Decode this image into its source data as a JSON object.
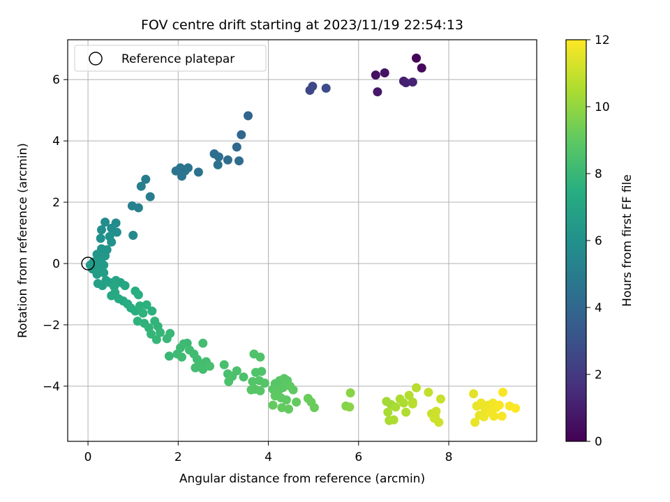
{
  "chart_data": {
    "type": "scatter",
    "title": "FOV centre drift starting at 2023/11/19 22:54:13",
    "xlabel": "Angular distance from reference (arcmin)",
    "ylabel": "Rotation from reference (arcmin)",
    "xlim": [
      -0.45,
      9.95
    ],
    "ylim": [
      -5.8,
      7.3
    ],
    "xticks": [
      0,
      2,
      4,
      6,
      8
    ],
    "yticks": [
      -4,
      -2,
      0,
      2,
      4,
      6
    ],
    "grid": true,
    "legend": {
      "position": "top-left",
      "entries": [
        "Reference platepar"
      ]
    },
    "reference_point": {
      "x": 0,
      "y": 0
    },
    "colorbar": {
      "label": "Hours from first FF file",
      "min": 0,
      "max": 12,
      "ticks": [
        0,
        2,
        4,
        6,
        8,
        10,
        12
      ],
      "colormap": "viridis"
    },
    "points": [
      [
        7.28,
        6.7,
        0.1
      ],
      [
        7.4,
        6.38,
        0.3
      ],
      [
        6.38,
        6.15,
        0.5
      ],
      [
        6.58,
        6.22,
        0.6
      ],
      [
        6.42,
        5.6,
        0.8
      ],
      [
        7.0,
        5.95,
        1.0
      ],
      [
        7.05,
        5.9,
        1.1
      ],
      [
        7.2,
        5.92,
        1.2
      ],
      [
        4.92,
        5.65,
        2.5
      ],
      [
        4.98,
        5.78,
        2.6
      ],
      [
        5.28,
        5.72,
        2.8
      ],
      [
        3.55,
        4.82,
        3.9
      ],
      [
        3.4,
        4.2,
        4.0
      ],
      [
        3.3,
        3.8,
        4.1
      ],
      [
        3.35,
        3.35,
        4.2
      ],
      [
        3.1,
        3.38,
        4.2
      ],
      [
        2.9,
        3.48,
        4.3
      ],
      [
        2.8,
        3.58,
        4.3
      ],
      [
        2.88,
        3.22,
        4.4
      ],
      [
        2.45,
        2.98,
        4.5
      ],
      [
        2.22,
        3.12,
        4.6
      ],
      [
        2.15,
        3.02,
        4.6
      ],
      [
        2.05,
        3.12,
        4.6
      ],
      [
        1.95,
        3.02,
        4.7
      ],
      [
        2.08,
        2.85,
        4.7
      ],
      [
        1.28,
        2.75,
        5.0
      ],
      [
        1.38,
        2.18,
        5.0
      ],
      [
        1.18,
        2.52,
        5.1
      ],
      [
        1.12,
        1.82,
        5.2
      ],
      [
        0.98,
        1.88,
        5.2
      ],
      [
        1.0,
        0.92,
        5.6
      ],
      [
        0.62,
        1.32,
        5.7
      ],
      [
        0.38,
        1.35,
        5.8
      ],
      [
        0.52,
        1.15,
        5.8
      ],
      [
        0.3,
        1.1,
        5.9
      ],
      [
        0.64,
        1.02,
        5.9
      ],
      [
        0.48,
        0.88,
        6.0
      ],
      [
        0.28,
        0.82,
        6.0
      ],
      [
        0.52,
        0.7,
        6.1
      ],
      [
        0.42,
        0.45,
        6.2
      ],
      [
        0.3,
        0.48,
        6.2
      ],
      [
        0.2,
        0.3,
        6.3
      ],
      [
        0.3,
        0.18,
        6.3
      ],
      [
        0.38,
        0.25,
        6.3
      ],
      [
        0.12,
        0.05,
        6.4
      ],
      [
        0.05,
        -0.05,
        6.4
      ],
      [
        0.25,
        0.05,
        6.4
      ],
      [
        0.35,
        -0.05,
        6.5
      ],
      [
        0.18,
        -0.12,
        6.5
      ],
      [
        0.1,
        -0.18,
        6.5
      ],
      [
        0.28,
        -0.22,
        6.6
      ],
      [
        0.2,
        -0.35,
        6.6
      ],
      [
        0.35,
        -0.3,
        6.6
      ],
      [
        0.4,
        -0.55,
        6.7
      ],
      [
        0.22,
        -0.65,
        6.8
      ],
      [
        0.32,
        -0.72,
        6.8
      ],
      [
        0.48,
        -0.62,
        6.9
      ],
      [
        0.62,
        -0.55,
        7.0
      ],
      [
        0.72,
        -0.62,
        7.0
      ],
      [
        0.82,
        -0.72,
        7.1
      ],
      [
        0.58,
        -0.75,
        7.1
      ],
      [
        0.6,
        -0.95,
        7.2
      ],
      [
        0.52,
        -1.05,
        7.2
      ],
      [
        0.68,
        -1.15,
        7.3
      ],
      [
        0.78,
        -1.22,
        7.3
      ],
      [
        0.88,
        -1.32,
        7.4
      ],
      [
        1.05,
        -0.9,
        7.4
      ],
      [
        1.12,
        -1.02,
        7.5
      ],
      [
        0.95,
        -1.45,
        7.5
      ],
      [
        1.05,
        -1.55,
        7.5
      ],
      [
        1.15,
        -1.38,
        7.6
      ],
      [
        1.3,
        -1.35,
        7.6
      ],
      [
        1.42,
        -1.55,
        7.6
      ],
      [
        1.22,
        -1.62,
        7.7
      ],
      [
        1.1,
        -1.88,
        7.7
      ],
      [
        1.25,
        -1.95,
        7.7
      ],
      [
        1.35,
        -2.1,
        7.8
      ],
      [
        1.48,
        -1.88,
        7.8
      ],
      [
        1.55,
        -2.05,
        7.8
      ],
      [
        1.4,
        -2.3,
        7.9
      ],
      [
        1.6,
        -2.25,
        7.9
      ],
      [
        1.52,
        -2.48,
        7.9
      ],
      [
        1.75,
        -2.45,
        8.0
      ],
      [
        1.82,
        -2.28,
        8.0
      ],
      [
        1.8,
        -3.02,
        8.0
      ],
      [
        1.98,
        -2.95,
        8.1
      ],
      [
        2.05,
        -2.75,
        8.1
      ],
      [
        2.12,
        -2.62,
        8.1
      ],
      [
        2.2,
        -2.6,
        8.1
      ],
      [
        2.25,
        -2.82,
        8.2
      ],
      [
        2.08,
        -3.05,
        8.2
      ],
      [
        2.35,
        -2.95,
        8.2
      ],
      [
        2.42,
        -3.12,
        8.2
      ],
      [
        2.55,
        -2.6,
        8.3
      ],
      [
        2.48,
        -3.25,
        8.3
      ],
      [
        2.38,
        -3.4,
        8.3
      ],
      [
        2.55,
        -3.45,
        8.3
      ],
      [
        2.62,
        -3.2,
        8.3
      ],
      [
        2.7,
        -3.35,
        8.4
      ],
      [
        3.02,
        -3.3,
        8.4
      ],
      [
        3.1,
        -3.6,
        8.4
      ],
      [
        3.2,
        -3.68,
        8.5
      ],
      [
        3.12,
        -3.85,
        8.5
      ],
      [
        3.3,
        -3.5,
        8.5
      ],
      [
        3.45,
        -3.7,
        8.5
      ],
      [
        3.68,
        -2.95,
        8.6
      ],
      [
        3.82,
        -3.05,
        8.6
      ],
      [
        3.72,
        -3.55,
        8.6
      ],
      [
        3.85,
        -3.52,
        8.6
      ],
      [
        3.65,
        -3.85,
        8.7
      ],
      [
        3.8,
        -3.82,
        8.7
      ],
      [
        3.92,
        -3.9,
        8.7
      ],
      [
        3.7,
        -4.1,
        8.7
      ],
      [
        3.82,
        -4.15,
        8.8
      ],
      [
        3.62,
        -4.12,
        8.8
      ],
      [
        4.15,
        -3.92,
        8.8
      ],
      [
        4.25,
        -3.82,
        8.8
      ],
      [
        4.35,
        -3.75,
        8.9
      ],
      [
        4.42,
        -3.82,
        8.9
      ],
      [
        4.1,
        -4.1,
        8.9
      ],
      [
        4.22,
        -4.15,
        8.9
      ],
      [
        4.32,
        -4.05,
        8.9
      ],
      [
        4.48,
        -4.0,
        9.0
      ],
      [
        4.55,
        -4.12,
        9.0
      ],
      [
        4.15,
        -4.32,
        9.0
      ],
      [
        4.28,
        -4.38,
        9.0
      ],
      [
        4.4,
        -4.45,
        9.0
      ],
      [
        4.62,
        -4.52,
        9.1
      ],
      [
        4.1,
        -4.62,
        9.1
      ],
      [
        4.3,
        -4.7,
        9.1
      ],
      [
        4.45,
        -4.75,
        9.1
      ],
      [
        4.88,
        -4.4,
        9.2
      ],
      [
        4.95,
        -4.52,
        9.2
      ],
      [
        5.02,
        -4.7,
        9.2
      ],
      [
        5.72,
        -4.65,
        9.7
      ],
      [
        5.8,
        -4.68,
        9.8
      ],
      [
        5.82,
        -4.22,
        9.8
      ],
      [
        6.62,
        -4.5,
        10.3
      ],
      [
        6.72,
        -4.6,
        10.3
      ],
      [
        6.65,
        -4.85,
        10.4
      ],
      [
        6.82,
        -4.68,
        10.4
      ],
      [
        6.68,
        -5.12,
        10.4
      ],
      [
        6.78,
        -5.1,
        10.5
      ],
      [
        6.92,
        -4.42,
        10.5
      ],
      [
        7.0,
        -4.55,
        10.5
      ],
      [
        7.05,
        -4.85,
        10.6
      ],
      [
        7.12,
        -4.3,
        10.6
      ],
      [
        7.2,
        -4.52,
        10.6
      ],
      [
        7.28,
        -4.05,
        10.7
      ],
      [
        7.2,
        -4.58,
        10.7
      ],
      [
        7.55,
        -4.2,
        10.9
      ],
      [
        7.82,
        -4.42,
        11.0
      ],
      [
        7.62,
        -4.9,
        11.0
      ],
      [
        7.68,
        -5.05,
        11.1
      ],
      [
        7.72,
        -4.82,
        11.1
      ],
      [
        7.78,
        -5.18,
        11.1
      ],
      [
        7.7,
        -5.0,
        11.1
      ],
      [
        8.55,
        -4.25,
        11.5
      ],
      [
        8.62,
        -4.65,
        11.6
      ],
      [
        8.68,
        -4.95,
        11.6
      ],
      [
        8.58,
        -5.18,
        11.6
      ],
      [
        8.72,
        -4.55,
        11.7
      ],
      [
        8.8,
        -4.72,
        11.7
      ],
      [
        8.78,
        -5.0,
        11.7
      ],
      [
        8.88,
        -4.62,
        11.7
      ],
      [
        8.92,
        -4.85,
        11.8
      ],
      [
        8.98,
        -4.55,
        11.8
      ],
      [
        9.05,
        -4.7,
        11.8
      ],
      [
        9.0,
        -4.98,
        11.8
      ],
      [
        9.12,
        -4.62,
        11.9
      ],
      [
        9.18,
        -4.98,
        11.9
      ],
      [
        9.2,
        -4.2,
        11.9
      ],
      [
        9.35,
        -4.65,
        11.9
      ],
      [
        9.48,
        -4.72,
        12.0
      ]
    ]
  }
}
